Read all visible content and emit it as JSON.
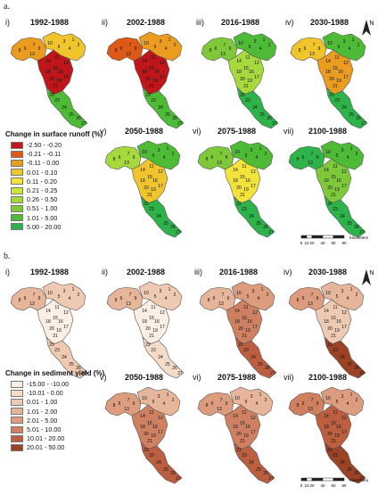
{
  "sections": [
    {
      "id": "a",
      "label": "a.",
      "legend_title": "Change in surface runoff (%)",
      "legend": [
        {
          "label": "-2.50 - -0.20",
          "color": "#c0161a"
        },
        {
          "label": "-0.21 - -0.11",
          "color": "#dd5a16"
        },
        {
          "label": "-0.11 - 0.00",
          "color": "#eb9c1f"
        },
        {
          "label": "0.01 - 0.10",
          "color": "#efc52b"
        },
        {
          "label": "0.11 - 0.20",
          "color": "#f3e23a"
        },
        {
          "label": "0.21 - 0.25",
          "color": "#cfe43c"
        },
        {
          "label": "0.26 - 0.50",
          "color": "#a6d93b"
        },
        {
          "label": "0.51 - 1.00",
          "color": "#7ec93a"
        },
        {
          "label": "1.01 - 5.00",
          "color": "#4dbb35"
        },
        {
          "label": "5.00 - 20.00",
          "color": "#2eb24a"
        }
      ],
      "panels": [
        {
          "index": "i)",
          "period": "1992-1988",
          "palette": [
            "#efc52b",
            "#eb9c1f",
            "#c0161a",
            "#4dbb35"
          ]
        },
        {
          "index": "ii)",
          "period": "2002-1988",
          "palette": [
            "#eb9c1f",
            "#dd5a16",
            "#c0161a",
            "#4dbb35"
          ]
        },
        {
          "index": "iii)",
          "period": "2016-1988",
          "palette": [
            "#4dbb35",
            "#7ec93a",
            "#a6d93b",
            "#2eb24a"
          ]
        },
        {
          "index": "iv)",
          "period": "2030-1988",
          "palette": [
            "#4dbb35",
            "#efc52b",
            "#eb9c1f",
            "#2eb24a"
          ]
        },
        {
          "index": "v)",
          "period": "2050-1988",
          "palette": [
            "#4dbb35",
            "#a6d93b",
            "#efc52b",
            "#2eb24a"
          ]
        },
        {
          "index": "vi)",
          "period": "2075-1988",
          "palette": [
            "#4dbb35",
            "#7ec93a",
            "#f3e23a",
            "#2eb24a"
          ]
        },
        {
          "index": "vii)",
          "period": "2100-1988",
          "palette": [
            "#4dbb35",
            "#2eb24a",
            "#7ec93a",
            "#2eb24a"
          ]
        }
      ]
    },
    {
      "id": "b",
      "label": "b.",
      "legend_title": "Change in sediment yield (%)",
      "legend": [
        {
          "label": "-15.00 - -10.00",
          "color": "#fbeee2"
        },
        {
          "label": "-10.01 - 0.00",
          "color": "#f5dcc8"
        },
        {
          "label": "0.01 - 1.00",
          "color": "#efcab3"
        },
        {
          "label": "1.01 - 2.00",
          "color": "#e6b59a"
        },
        {
          "label": "2.01 - 5.00",
          "color": "#dc9c7d"
        },
        {
          "label": "5.01 - 10.00",
          "color": "#cf8060"
        },
        {
          "label": "10.01 - 20.00",
          "color": "#bb5f40"
        },
        {
          "label": "20.01 - 50.00",
          "color": "#9c4326"
        }
      ],
      "panels": [
        {
          "index": "i)",
          "period": "1992-1988",
          "palette": [
            "#efcab3",
            "#e6b59a",
            "#fbeee2",
            "#efcab3"
          ]
        },
        {
          "index": "ii)",
          "period": "2002-1988",
          "palette": [
            "#efcab3",
            "#e6b59a",
            "#fbeee2",
            "#f5dcc8"
          ]
        },
        {
          "index": "iii)",
          "period": "2016-1988",
          "palette": [
            "#dc9c7d",
            "#e6b59a",
            "#cf8060",
            "#bb5f40"
          ]
        },
        {
          "index": "iv)",
          "period": "2030-1988",
          "palette": [
            "#e6b59a",
            "#dc9c7d",
            "#efcab3",
            "#9c4326"
          ]
        },
        {
          "index": "v)",
          "period": "2050-1988",
          "palette": [
            "#e6b59a",
            "#dc9c7d",
            "#cf8060",
            "#bb5f40"
          ]
        },
        {
          "index": "vi)",
          "period": "2075-1988",
          "palette": [
            "#e6b59a",
            "#dc9c7d",
            "#cf8060",
            "#bb5f40"
          ]
        },
        {
          "index": "vii)",
          "period": "2100-1988",
          "palette": [
            "#dc9c7d",
            "#cf8060",
            "#bb5f40",
            "#9c4326"
          ]
        }
      ]
    }
  ],
  "subbasin_labels": [
    "1",
    "2",
    "3",
    "4",
    "5",
    "6",
    "7",
    "8",
    "9",
    "10",
    "11",
    "12",
    "13",
    "14",
    "15",
    "16",
    "17",
    "18",
    "19",
    "20",
    "21",
    "22",
    "23",
    "24",
    "25",
    "26",
    "27"
  ],
  "north_arrow": {
    "label": "N"
  },
  "scale_bar": {
    "ticks": [
      "0",
      "10",
      "20",
      "40",
      "60",
      "80"
    ],
    "unit": "Kilometers"
  }
}
